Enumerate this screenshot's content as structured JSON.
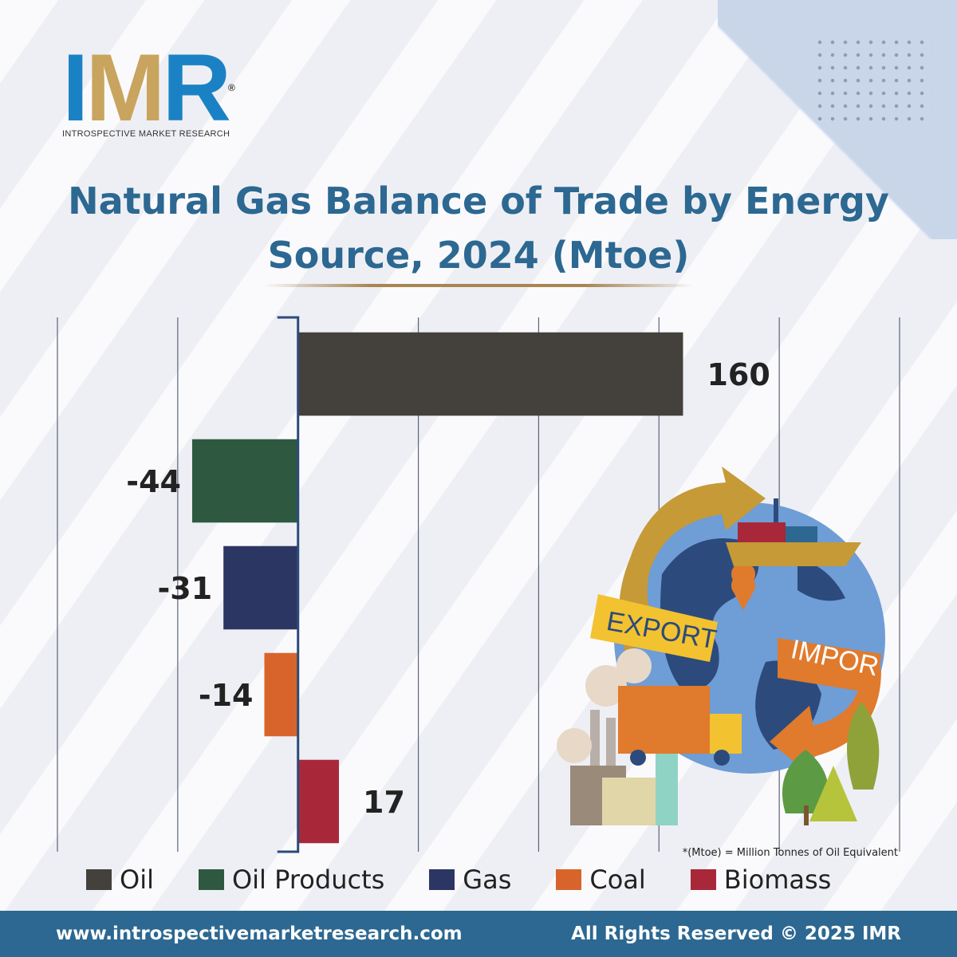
{
  "brand": {
    "logo_part_i": "I",
    "logo_part_m": "M",
    "logo_part_r": "R",
    "registered": "®",
    "tagline": "INTROSPECTIVE MARKET RESEARCH"
  },
  "title_line1": "Natural Gas Balance of Trade by Energy",
  "title_line2": "Source, 2024 (Mtoe)",
  "illustration": {
    "export_label": "EXPORT",
    "import_label": "IMPOR"
  },
  "footnote": "*(Mtoe) = Million Tonnes of Oil Equivalent",
  "footer": {
    "url": "www.introspectivemarketresearch.com",
    "rights": "All Rights Reserved © 2025 IMR"
  },
  "chart_data": {
    "type": "bar",
    "orientation": "horizontal",
    "title": "Natural Gas Balance of Trade by Energy Source, 2024 (Mtoe)",
    "categories": [
      "Oil",
      "Oil Products",
      "Gas",
      "Coal",
      "Biomass"
    ],
    "values": [
      160,
      -44,
      -31,
      -14,
      17
    ],
    "value_labels": [
      "160",
      "-44",
      "-31",
      "-14",
      "17"
    ],
    "colors": [
      "#44403b",
      "#2e5940",
      "#2c3663",
      "#d8642c",
      "#a8283a"
    ],
    "xlim": [
      -100,
      250
    ],
    "grid": true,
    "legend": "bottom",
    "xlabel": "",
    "ylabel": ""
  }
}
